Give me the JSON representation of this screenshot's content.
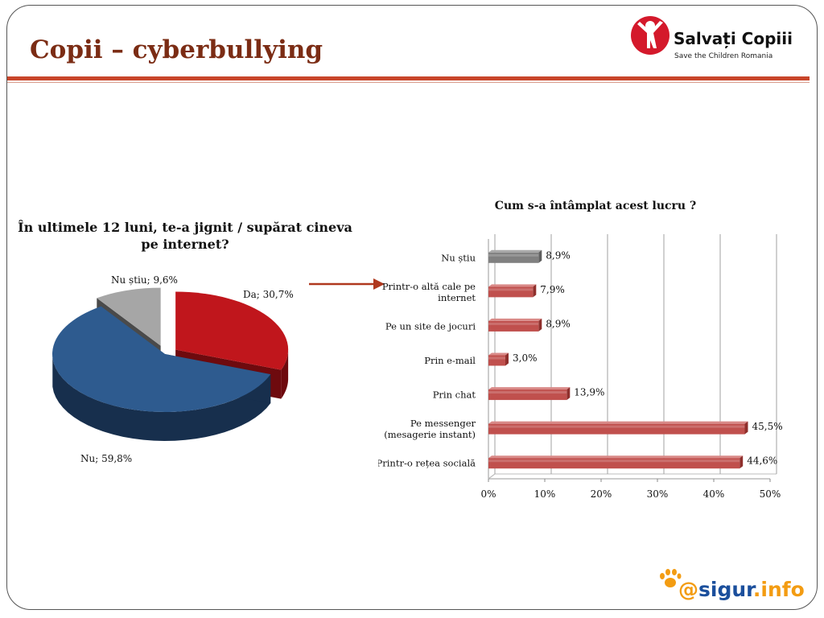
{
  "slide": {
    "title": "Copii – cyberbullying"
  },
  "logo": {
    "name": "Salvați Copiii",
    "subtitle": "Save the Children Romania",
    "icon": "child-figure-icon",
    "color": "#d4192b"
  },
  "watermark": {
    "at": "@",
    "sigur": "sigur",
    "info": ".info",
    "icon": "paw-icon"
  },
  "colors": {
    "accent": "#c8452a",
    "title": "#7b2c14",
    "bar_red": "#c0504d",
    "bar_gray": "#808080",
    "pie_red": "#c0161c",
    "pie_blue": "#2e5b8f",
    "pie_gray": "#a6a6a6"
  },
  "chart_data": [
    {
      "type": "pie",
      "title": "În ultimele 12 luni, te-a jignit / supărat cineva pe internet?",
      "slices": [
        {
          "label": "Da; 30,7%",
          "name": "Da",
          "value": 30.7
        },
        {
          "label": "Nu; 59,8%",
          "name": "Nu",
          "value": 59.8
        },
        {
          "label": "Nu știu; 9,6%",
          "name": "Nu știu",
          "value": 9.6
        }
      ]
    },
    {
      "type": "bar",
      "orientation": "horizontal",
      "title": "Cum s-a întâmplat acest lucru ?",
      "categories": [
        "Nu știu",
        "Printr-o altă cale pe internet",
        "Pe un site de jocuri",
        "Prin e-mail",
        "Prin chat",
        "Pe messenger (mesagerie instant)",
        "Printr-o rețea socială"
      ],
      "category_lines": [
        [
          "Nu știu"
        ],
        [
          "Printr-o altă cale pe",
          "internet"
        ],
        [
          "Pe un site de jocuri"
        ],
        [
          "Prin e-mail"
        ],
        [
          "Prin chat"
        ],
        [
          "Pe messenger",
          "(mesagerie instant)"
        ],
        [
          "Printr-o rețea socială"
        ]
      ],
      "values": [
        8.9,
        7.9,
        8.9,
        3.0,
        13.9,
        45.5,
        44.6
      ],
      "value_labels": [
        "8,9%",
        "7,9%",
        "8,9%",
        "3,0%",
        "13,9%",
        "45,5%",
        "44,6%"
      ],
      "xlim": [
        0,
        50
      ],
      "xticks": [
        0,
        10,
        20,
        30,
        40,
        50
      ],
      "xtick_labels": [
        "0%",
        "10%",
        "20%",
        "30%",
        "40%",
        "50%"
      ],
      "grid": true
    }
  ]
}
